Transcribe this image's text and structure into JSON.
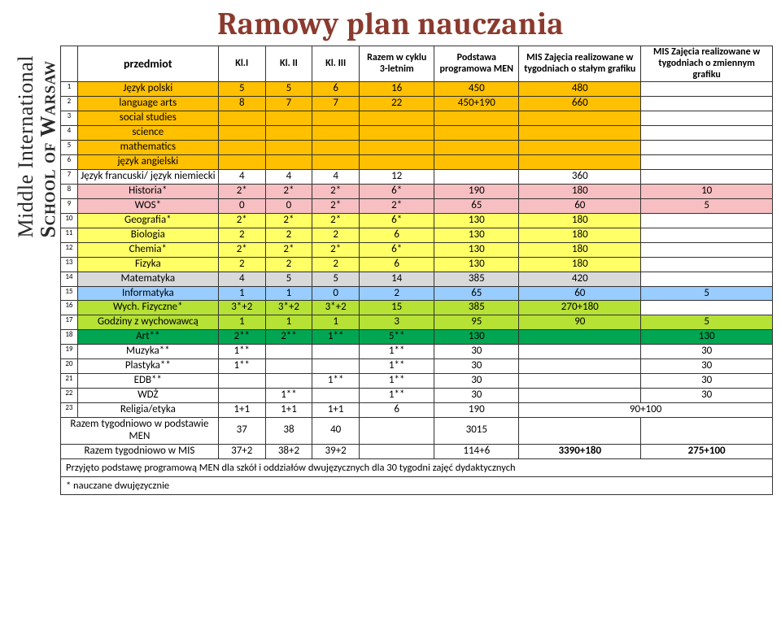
{
  "title": "Ramowy plan nauczania",
  "logo": {
    "line1": "Middle International",
    "line2": "School of Warsaw"
  },
  "header": {
    "subject": "przedmiot",
    "c1": "Kl.I",
    "c2": "Kl. II",
    "c3": "Kl. III",
    "sum": "Razem w cyklu 3-letnim",
    "basis": "Podstawa programowa MEN",
    "mis1": "MIS Zajęcia realizowane w tygodniach o stałym grafiku",
    "mis2": "MIS Zajęcia realizowane w tygodniach o zmiennym grafiku"
  },
  "rows": [
    {
      "n": "1",
      "cls": "orange",
      "sub": "Język polski",
      "k1": "5",
      "k2": "5",
      "k3": "6",
      "sum": "16",
      "basis": "450",
      "m1": "480",
      "m2": ""
    },
    {
      "n": "2",
      "cls": "orange",
      "sub": "language arts",
      "k1": "8",
      "k2": "7",
      "k3": "7",
      "sum": "22",
      "basis": "450+190",
      "m1": "660",
      "m2": ""
    },
    {
      "n": "3",
      "cls": "orange",
      "sub": "social studies",
      "k1": "",
      "k2": "",
      "k3": "",
      "sum": "",
      "basis": "",
      "m1": "",
      "m2": ""
    },
    {
      "n": "4",
      "cls": "orange",
      "sub": "science",
      "k1": "",
      "k2": "",
      "k3": "",
      "sum": "",
      "basis": "",
      "m1": "",
      "m2": ""
    },
    {
      "n": "5",
      "cls": "orange",
      "sub": "mathematics",
      "k1": "",
      "k2": "",
      "k3": "",
      "sum": "",
      "basis": "",
      "m1": "",
      "m2": ""
    },
    {
      "n": "6",
      "cls": "orange",
      "sub": "język angielski",
      "k1": "",
      "k2": "",
      "k3": "",
      "sum": "",
      "basis": "",
      "m1": "",
      "m2": ""
    },
    {
      "n": "7",
      "cls": "",
      "sub": "Język francuski/ język niemiecki",
      "k1": "4",
      "k2": "4",
      "k3": "4",
      "sum": "12",
      "basis": "",
      "m1": "360",
      "m2": ""
    },
    {
      "n": "8",
      "cls": "lightred",
      "sub": "Historia*",
      "k1": "2*",
      "k2": "2*",
      "k3": "2*",
      "sum": "6*",
      "basis": "190",
      "m1": "180",
      "m2": "10"
    },
    {
      "n": "9",
      "cls": "lightred",
      "sub": "WOS*",
      "k1": "0",
      "k2": "0",
      "k3": "2*",
      "sum": "2*",
      "basis": "65",
      "m1": "60",
      "m2": "5"
    },
    {
      "n": "10",
      "cls": "yellow",
      "sub": "Geografia*",
      "k1": "2*",
      "k2": "2*",
      "k3": "2*",
      "sum": "6*",
      "basis": "130",
      "m1": "180",
      "m2": ""
    },
    {
      "n": "11",
      "cls": "yellow",
      "sub": "Biologia",
      "k1": "2",
      "k2": "2",
      "k3": "2",
      "sum": "6",
      "basis": "130",
      "m1": "180",
      "m2": ""
    },
    {
      "n": "12",
      "cls": "yellow",
      "sub": "Chemia*",
      "k1": "2*",
      "k2": "2*",
      "k3": "2*",
      "sum": "6*",
      "basis": "130",
      "m1": "180",
      "m2": ""
    },
    {
      "n": "13",
      "cls": "yellow",
      "sub": "Fizyka",
      "k1": "2",
      "k2": "2",
      "k3": "2",
      "sum": "6",
      "basis": "130",
      "m1": "180",
      "m2": ""
    },
    {
      "n": "14",
      "cls": "grey",
      "sub": "Matematyka",
      "k1": "4",
      "k2": "5",
      "k3": "5",
      "sum": "14",
      "basis": "385",
      "m1": "420",
      "m2": ""
    },
    {
      "n": "15",
      "cls": "blue",
      "sub": "Informatyka",
      "k1": "1",
      "k2": "1",
      "k3": "0",
      "sum": "2",
      "basis": "65",
      "m1": "60",
      "m2": "5"
    },
    {
      "n": "16",
      "cls": "lime",
      "sub": "Wych. Fizyczne*",
      "k1": "3*+2",
      "k2": "3*+2",
      "k3": "3*+2",
      "sum": "15",
      "basis": "385",
      "m1": "270+180",
      "m2": ""
    },
    {
      "n": "17",
      "cls": "lime",
      "sub": "Godziny z wychowawcą",
      "k1": "1",
      "k2": "1",
      "k3": "1",
      "sum": "3",
      "basis": "95",
      "m1": "90",
      "m2": "5"
    },
    {
      "n": "18",
      "cls": "green",
      "sub": "Art**",
      "k1": "2**",
      "k2": "2**",
      "k3": "1**",
      "sum": "5**",
      "basis": "130",
      "m1": "",
      "m2": "130"
    },
    {
      "n": "19",
      "cls": "",
      "sub": "Muzyka**",
      "k1": "1**",
      "k2": "",
      "k3": "",
      "sum": "1**",
      "basis": "30",
      "m1": "",
      "m2": "30"
    },
    {
      "n": "20",
      "cls": "",
      "sub": "Plastyka**",
      "k1": "1**",
      "k2": "",
      "k3": "",
      "sum": "1**",
      "basis": "30",
      "m1": "",
      "m2": "30"
    },
    {
      "n": "21",
      "cls": "",
      "sub": "EDB**",
      "k1": "",
      "k2": "",
      "k3": "1**",
      "sum": "1**",
      "basis": "30",
      "m1": "",
      "m2": "30"
    },
    {
      "n": "22",
      "cls": "",
      "sub": "WDŻ",
      "k1": "",
      "k2": "1**",
      "k3": "",
      "sum": "1**",
      "basis": "30",
      "m1": "",
      "m2": "30"
    }
  ],
  "row23": {
    "n": "23",
    "sub": "Religia/etyka",
    "k1": "1+1",
    "k2": "1+1",
    "k3": "1+1",
    "sum": "6",
    "basis": "190",
    "merged": "90+100"
  },
  "sumrow1": {
    "sub": "Razem tygodniowo w podstawie MEN",
    "k1": "37",
    "k2": "38",
    "k3": "40",
    "sum": "",
    "basis": "3015",
    "m1": "",
    "m2": ""
  },
  "sumrow2": {
    "sub": "Razem tygodniowo w MIS",
    "k1": "37+2",
    "k2": "38+2",
    "k3": "39+2",
    "sum": "",
    "basis": "114+6",
    "m1": "3390+180",
    "m2": "275+100"
  },
  "footnote1": "Przyjęto podstawę programową MEN dla szkół i oddziałów dwujęzycznych dla 30 tygodni zajęć dydaktycznych",
  "footnote2": "* nauczane dwujęzycznie",
  "colors": {
    "orange": "#ffc000",
    "lightred": "#f7bfc2",
    "yellow": "#ffff66",
    "grey": "#d9d9d9",
    "blue": "#99ccff",
    "lime": "#b6e135",
    "green": "#00a651",
    "title": "#8b3a2e"
  }
}
